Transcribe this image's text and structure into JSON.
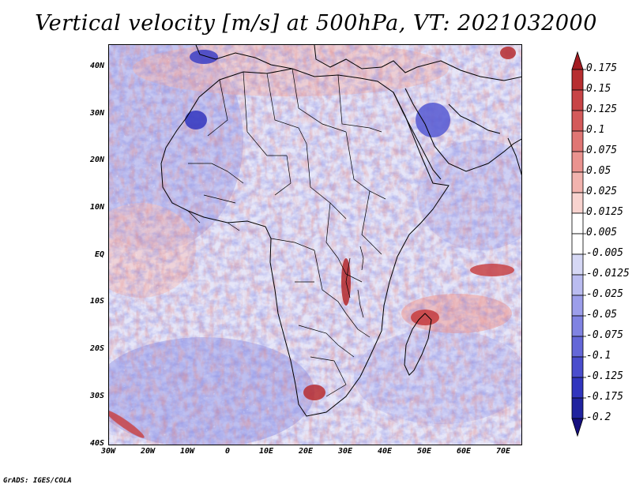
{
  "title": "Vertical velocity [m/s] at 500hPa, VT: 2021032000",
  "footer": "GrADS: IGES/COLA",
  "map": {
    "variable": "Vertical velocity",
    "units": "m/s",
    "level": "500hPa",
    "valid_time": "2021032000",
    "lat_labels": [
      "40N",
      "30N",
      "20N",
      "10N",
      "EQ",
      "10S",
      "20S",
      "30S",
      "40S"
    ],
    "lon_labels": [
      "30W",
      "20W",
      "10W",
      "0",
      "10E",
      "20E",
      "30E",
      "40E",
      "50E",
      "60E",
      "70E"
    ]
  },
  "colorbar": {
    "labels": [
      "0.175",
      "0.15",
      "0.125",
      "0.1",
      "0.075",
      "0.05",
      "0.025",
      "0.0125",
      "0.005",
      "-0.005",
      "-0.0125",
      "-0.025",
      "-0.05",
      "-0.075",
      "-0.1",
      "-0.125",
      "-0.175",
      "-0.2"
    ],
    "colors": [
      "#a31c22",
      "#b72e30",
      "#c84446",
      "#d45a5a",
      "#e07674",
      "#ea938f",
      "#f2b3ae",
      "#f8d3cf",
      "#ffffff",
      "#ffffff",
      "#d6d8f5",
      "#babcf0",
      "#9c9eea",
      "#8083e2",
      "#6467d8",
      "#4a4dcd",
      "#3135be",
      "#20239f",
      "#150f7f"
    ]
  }
}
